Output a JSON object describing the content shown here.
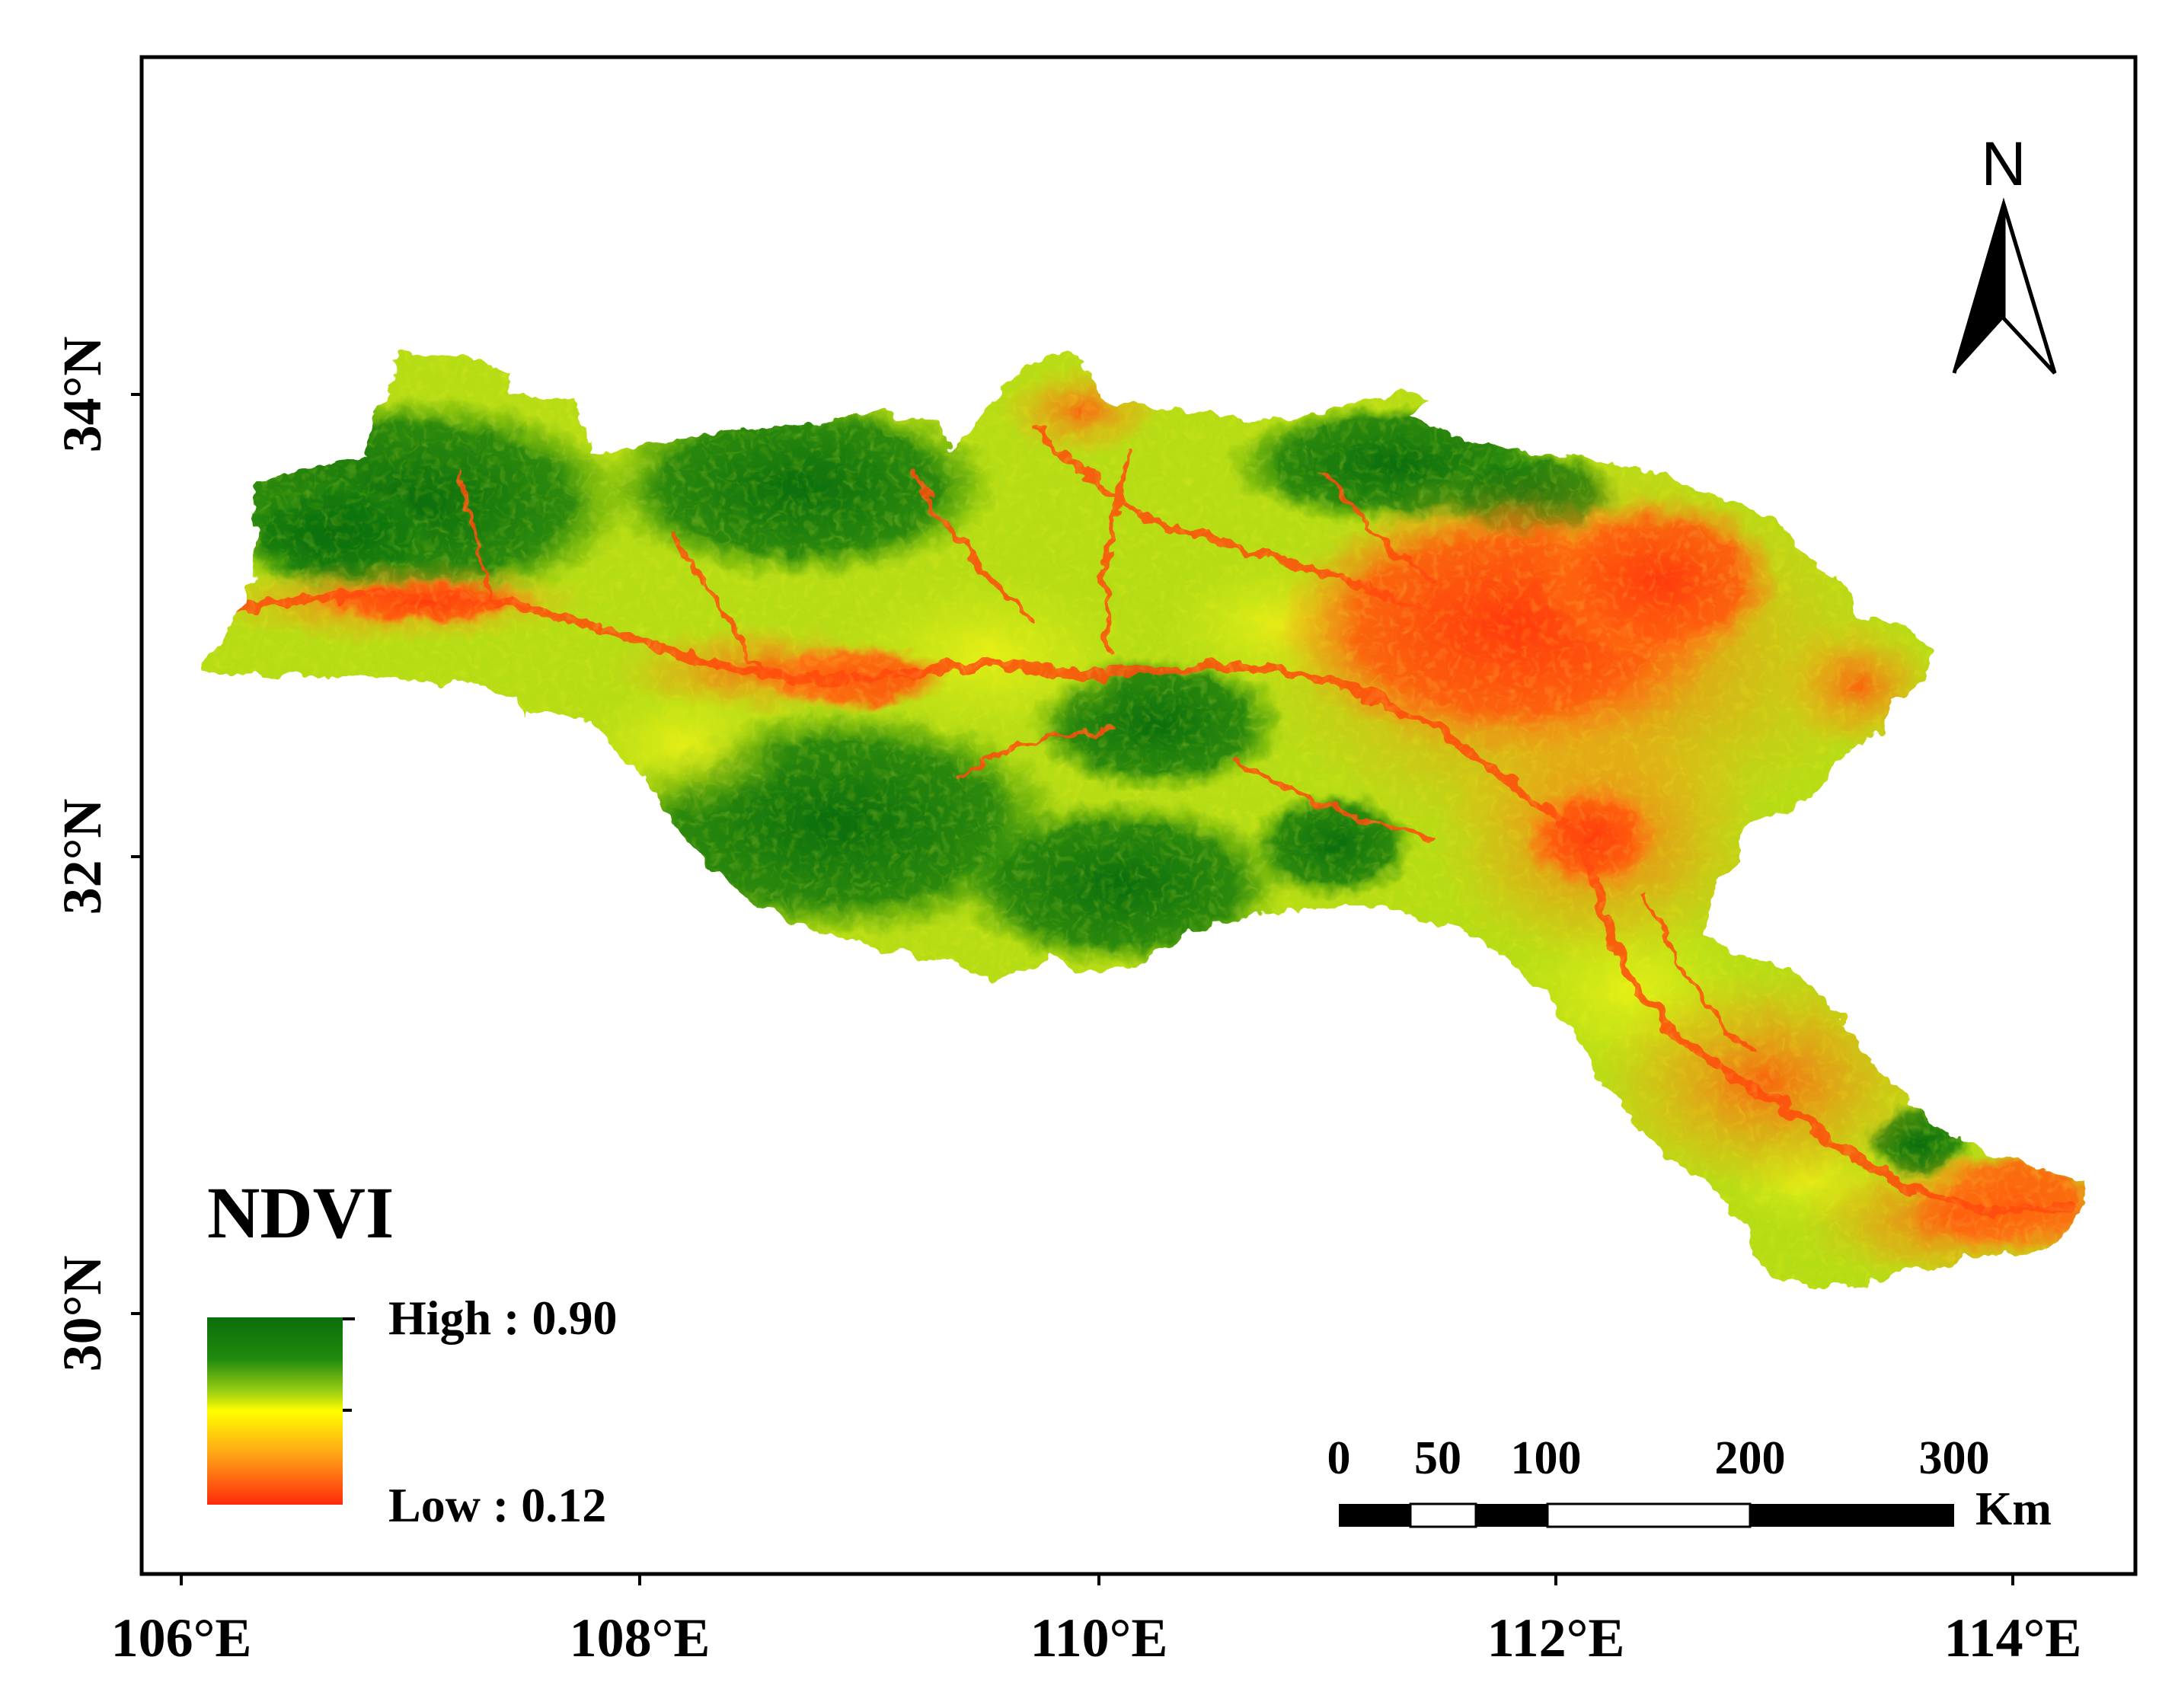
{
  "map": {
    "type": "choropleth-raster",
    "subject": "NDVI",
    "colors": {
      "high": "#0a6e0a",
      "mid_high": "#4fa80f",
      "mid": "#c8e612",
      "yellow": "#ffff00",
      "mid_low": "#ff9a16",
      "low": "#ff3a0c",
      "frame": "#000000"
    }
  },
  "axes": {
    "x_ticks": [
      "106°E",
      "108°E",
      "110°E",
      "112°E",
      "114°E"
    ],
    "y_ticks": [
      "30°N",
      "32°N",
      "34°N"
    ]
  },
  "legend": {
    "title": "NDVI",
    "high_label": "High : 0.90",
    "low_label": "Low : 0.12",
    "high_value": 0.9,
    "low_value": 0.12
  },
  "scale_bar": {
    "labels": [
      "0",
      "50",
      "100",
      "200",
      "300"
    ],
    "unit": "Km"
  },
  "north_arrow": {
    "label": "N",
    "icon": "north-arrow-icon"
  }
}
